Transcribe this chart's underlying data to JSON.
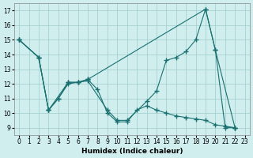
{
  "xlabel": "Humidex (Indice chaleur)",
  "bg_color": "#d0eeee",
  "grid_color": "#a0cccc",
  "line_color": "#1a7070",
  "xlim": [
    -0.5,
    23.5
  ],
  "ylim": [
    8.5,
    17.5
  ],
  "yticks": [
    9,
    10,
    11,
    12,
    13,
    14,
    15,
    16,
    17
  ],
  "xticks": [
    0,
    1,
    2,
    3,
    4,
    5,
    6,
    7,
    8,
    9,
    10,
    11,
    12,
    13,
    14,
    15,
    16,
    17,
    18,
    19,
    20,
    21,
    22,
    23
  ],
  "line1_x": [
    0,
    2,
    3,
    4,
    5,
    6,
    7,
    19,
    20,
    21,
    22
  ],
  "line1_y": [
    15,
    13.8,
    10.2,
    11.0,
    12.1,
    12.1,
    12.3,
    17.1,
    14.3,
    9.0,
    9.0
  ],
  "line2_x": [
    0,
    2,
    3,
    5,
    6,
    7,
    8,
    9,
    10,
    11,
    12,
    13,
    14,
    15,
    16,
    17,
    18,
    19,
    20,
    21,
    22
  ],
  "line2_y": [
    15,
    13.8,
    10.2,
    12.1,
    12.1,
    12.3,
    11.6,
    10.0,
    9.4,
    9.4,
    10.2,
    10.5,
    10.2,
    10.0,
    9.8,
    9.7,
    9.6,
    9.5,
    9.2,
    9.1,
    9.0
  ],
  "line3_x": [
    0,
    2,
    3,
    4,
    5,
    6,
    7,
    9,
    10,
    11,
    13,
    14,
    15,
    16,
    17,
    18,
    19,
    20,
    22
  ],
  "line3_y": [
    15,
    13.8,
    10.2,
    11.0,
    12.0,
    12.1,
    12.2,
    10.2,
    9.5,
    9.5,
    10.8,
    11.5,
    13.6,
    13.8,
    14.2,
    15.0,
    17.1,
    14.3,
    9.0
  ]
}
